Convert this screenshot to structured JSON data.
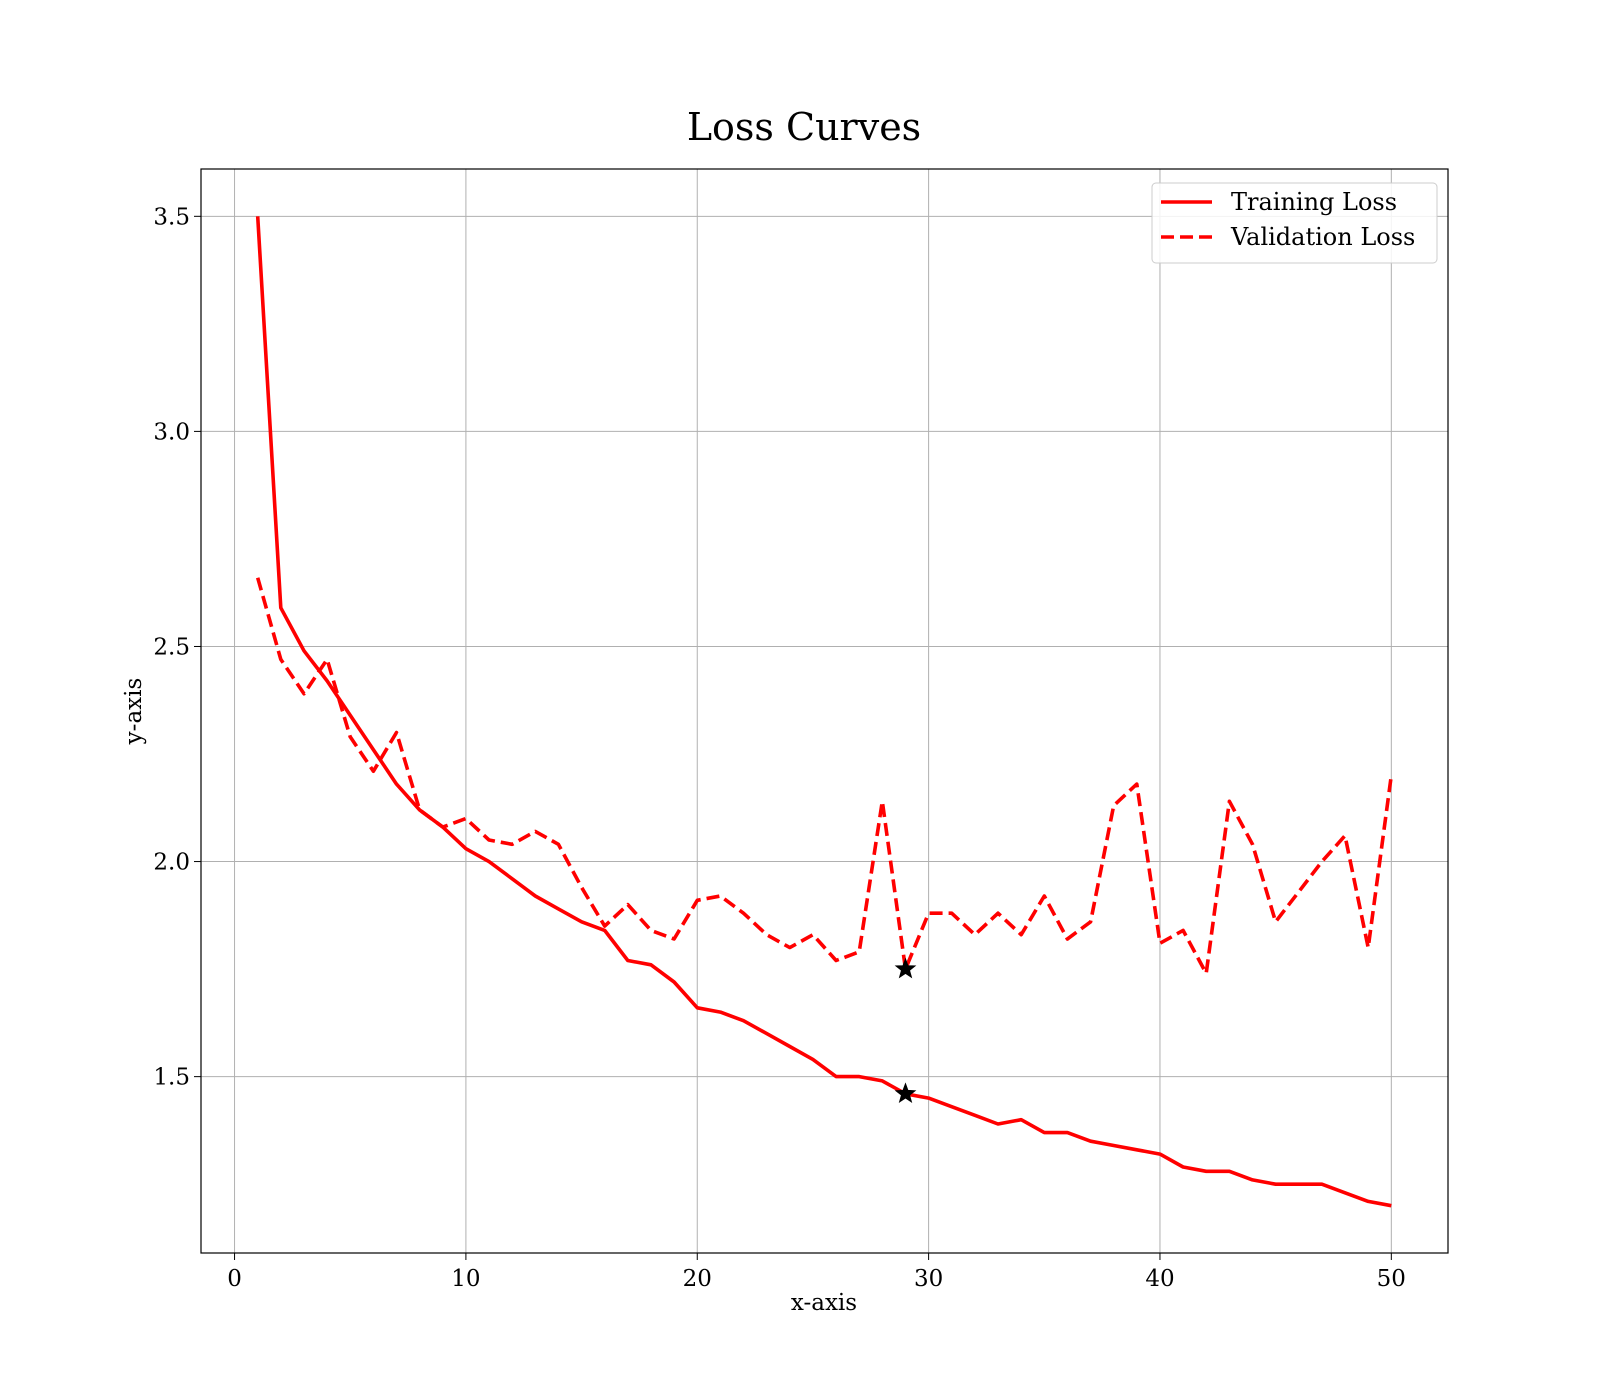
{
  "chart_data": {
    "type": "line",
    "title": "Loss Curves",
    "xlabel": "x-axis",
    "ylabel": "y-axis",
    "xlim": [
      -1.45,
      52.45
    ],
    "ylim": [
      1.09,
      3.61
    ],
    "xticks": [
      0,
      10,
      20,
      30,
      40,
      50
    ],
    "yticks": [
      1.5,
      2.0,
      2.5,
      3.0,
      3.5
    ],
    "xtick_labels": [
      "0",
      "10",
      "20",
      "30",
      "40",
      "50"
    ],
    "ytick_labels": [
      "1.5",
      "2.0",
      "2.5",
      "3.0",
      "3.5"
    ],
    "grid": true,
    "legend_position": "top-right",
    "x": [
      1,
      2,
      3,
      4,
      5,
      6,
      7,
      8,
      9,
      10,
      11,
      12,
      13,
      14,
      15,
      16,
      17,
      18,
      19,
      20,
      21,
      22,
      23,
      24,
      25,
      26,
      27,
      28,
      29,
      30,
      31,
      32,
      33,
      34,
      35,
      36,
      37,
      38,
      39,
      40,
      41,
      42,
      43,
      44,
      45,
      46,
      47,
      48,
      49,
      50
    ],
    "series": [
      {
        "name": "Training Loss",
        "style": "solid",
        "color": "#ff0000",
        "values": [
          3.5,
          2.59,
          2.49,
          2.42,
          2.34,
          2.26,
          2.18,
          2.12,
          2.08,
          2.03,
          2.0,
          1.96,
          1.92,
          1.89,
          1.86,
          1.84,
          1.77,
          1.76,
          1.72,
          1.66,
          1.65,
          1.63,
          1.6,
          1.57,
          1.54,
          1.5,
          1.5,
          1.49,
          1.46,
          1.45,
          1.43,
          1.41,
          1.39,
          1.4,
          1.37,
          1.37,
          1.35,
          1.34,
          1.33,
          1.32,
          1.29,
          1.28,
          1.28,
          1.26,
          1.25,
          1.25,
          1.25,
          1.23,
          1.21,
          1.2
        ]
      },
      {
        "name": "Validation Loss",
        "style": "dashed",
        "color": "#ff0000",
        "values": [
          2.66,
          2.47,
          2.39,
          2.47,
          2.29,
          2.21,
          2.3,
          2.12,
          2.08,
          2.1,
          2.05,
          2.04,
          2.07,
          2.04,
          1.94,
          1.85,
          1.9,
          1.84,
          1.82,
          1.91,
          1.92,
          1.88,
          1.83,
          1.8,
          1.83,
          1.77,
          1.79,
          2.14,
          1.75,
          1.88,
          1.88,
          1.83,
          1.88,
          1.83,
          1.92,
          1.82,
          1.86,
          2.13,
          2.18,
          1.81,
          1.84,
          1.74,
          2.14,
          2.04,
          1.86,
          1.93,
          2.0,
          2.06,
          1.8,
          2.2
        ]
      }
    ],
    "markers": [
      {
        "series": "Training Loss",
        "x": 29,
        "y": 1.46,
        "symbol": "star",
        "color": "#000000"
      },
      {
        "series": "Validation Loss",
        "x": 29,
        "y": 1.75,
        "symbol": "star",
        "color": "#000000"
      }
    ]
  }
}
